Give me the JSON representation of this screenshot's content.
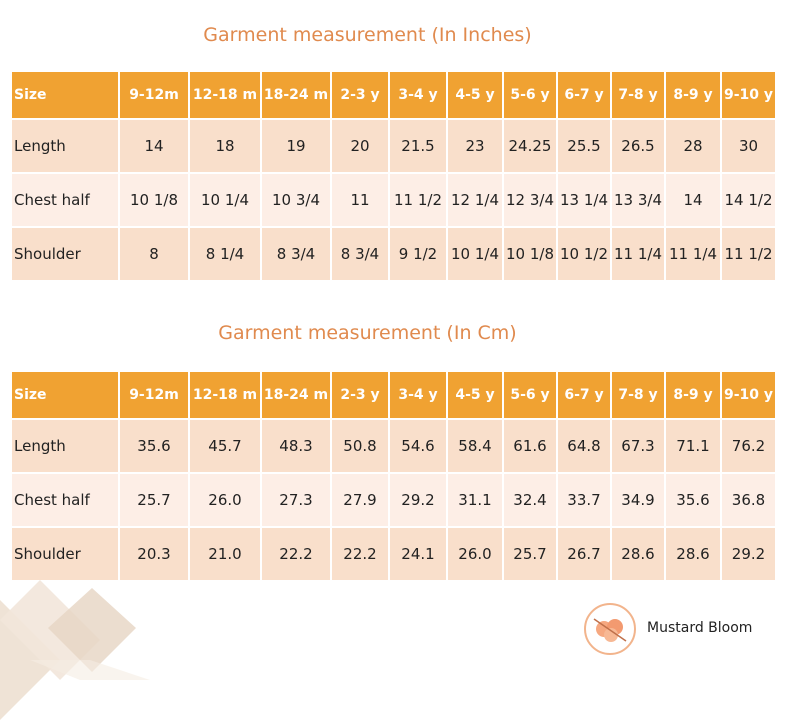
{
  "tables": [
    {
      "title": "Garment measurement (In Inches)",
      "header": [
        "Size",
        "9-12m",
        "12-18 m",
        "18-24 m",
        "2-3 y",
        "3-4 y",
        "4-5 y",
        "5-6 y",
        "6-7 y",
        "7-8 y",
        "8-9 y",
        "9-10 y"
      ],
      "rows": [
        [
          "Length",
          "14",
          "18",
          "19",
          "20",
          "21.5",
          "23",
          "24.25",
          "25.5",
          "26.5",
          "28",
          "30"
        ],
        [
          "Chest half",
          "10 1/8",
          "10 1/4",
          "10 3/4",
          "11",
          "11 1/2",
          "12 1/4",
          "12 3/4",
          "13 1/4",
          "13 3/4",
          "14",
          "14 1/2"
        ],
        [
          "Shoulder",
          "8",
          "8 1/4",
          "8 3/4",
          "8 3/4",
          "9 1/2",
          "10 1/4",
          "10 1/8",
          "10 1/2",
          "11 1/4",
          "11 1/4",
          "11 1/2"
        ]
      ]
    },
    {
      "title": "Garment measurement (In Cm)",
      "header": [
        "Size",
        "9-12m",
        "12-18 m",
        "18-24 m",
        "2-3 y",
        "3-4 y",
        "4-5 y",
        "5-6 y",
        "6-7 y",
        "7-8 y",
        "8-9 y",
        "9-10 y"
      ],
      "rows": [
        [
          "Length",
          "35.6",
          "45.7",
          "48.3",
          "50.8",
          "54.6",
          "58.4",
          "61.6",
          "64.8",
          "67.3",
          "71.1",
          "76.2"
        ],
        [
          "Chest half",
          "25.7",
          "26.0",
          "27.3",
          "27.9",
          "29.2",
          "31.1",
          "32.4",
          "33.7",
          "34.9",
          "35.6",
          "36.8"
        ],
        [
          "Shoulder",
          "20.3",
          "21.0",
          "22.2",
          "22.2",
          "24.1",
          "26.0",
          "25.7",
          "26.7",
          "28.6",
          "28.6",
          "29.2"
        ]
      ]
    }
  ],
  "brand": "Mustard Bloom"
}
